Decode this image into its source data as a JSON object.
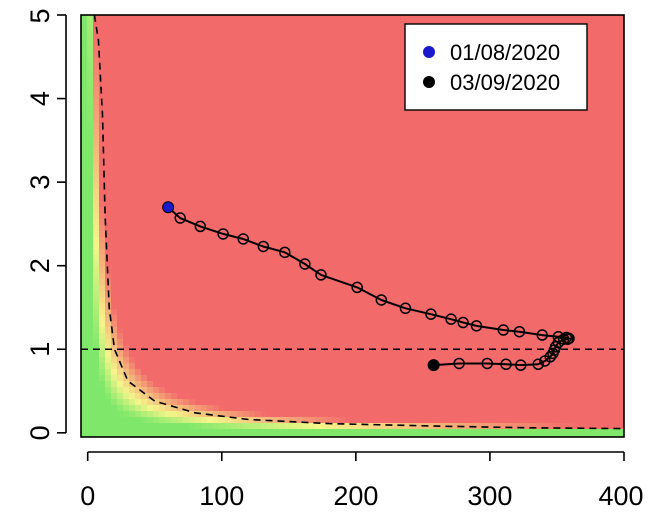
{
  "chart_data": {
    "type": "line",
    "title": "",
    "xlabel": "",
    "ylabel": "",
    "xlim": [
      -5,
      400
    ],
    "ylim": [
      -0.05,
      5
    ],
    "x_ticks": [
      0,
      100,
      200,
      300,
      400
    ],
    "y_ticks": [
      0,
      1,
      2,
      3,
      4,
      5
    ],
    "grid": false,
    "background": {
      "type": "heatmap",
      "colors": {
        "low": "#7fe86a",
        "mid": "#f5f58a",
        "high": "#f36a6a"
      }
    },
    "reference_lines": [
      {
        "orientation": "horizontal",
        "y": 1,
        "style": "dashed"
      }
    ],
    "reference_curves": [
      {
        "style": "dashed",
        "points": [
          [
            5,
            5.0
          ],
          [
            8,
            4.7
          ],
          [
            11,
            3.8
          ],
          [
            13,
            2.6
          ],
          [
            16,
            1.5
          ],
          [
            20,
            1.0
          ],
          [
            30,
            0.62
          ],
          [
            50,
            0.38
          ],
          [
            80,
            0.24
          ],
          [
            120,
            0.16
          ],
          [
            180,
            0.11
          ],
          [
            260,
            0.08
          ],
          [
            330,
            0.06
          ],
          [
            400,
            0.05
          ]
        ]
      }
    ],
    "legend": {
      "position": "top-right",
      "entries": [
        {
          "label": "01/08/2020",
          "color": "#1a1acc"
        },
        {
          "label": "03/09/2020",
          "color": "#000000"
        }
      ]
    },
    "series": [
      {
        "marker": "open-circle",
        "x": [
          60,
          69,
          84,
          101,
          116,
          131,
          147,
          162,
          174,
          201,
          219,
          237,
          256,
          271,
          280,
          290,
          310,
          322,
          339,
          351,
          357,
          359,
          358,
          355,
          351,
          349,
          348,
          347,
          345,
          341,
          336,
          323,
          312,
          298,
          277,
          258
        ],
        "y": [
          2.7,
          2.57,
          2.47,
          2.38,
          2.32,
          2.23,
          2.16,
          2.02,
          1.89,
          1.74,
          1.59,
          1.49,
          1.42,
          1.36,
          1.32,
          1.28,
          1.23,
          1.21,
          1.17,
          1.15,
          1.14,
          1.13,
          1.12,
          1.12,
          1.08,
          1.03,
          0.99,
          0.95,
          0.91,
          0.86,
          0.82,
          0.81,
          0.82,
          0.83,
          0.83,
          0.81
        ],
        "start": {
          "x": 60,
          "y": 2.7,
          "color": "#1a1acc"
        },
        "end": {
          "x": 258,
          "y": 0.81,
          "color": "#000000"
        }
      }
    ]
  }
}
